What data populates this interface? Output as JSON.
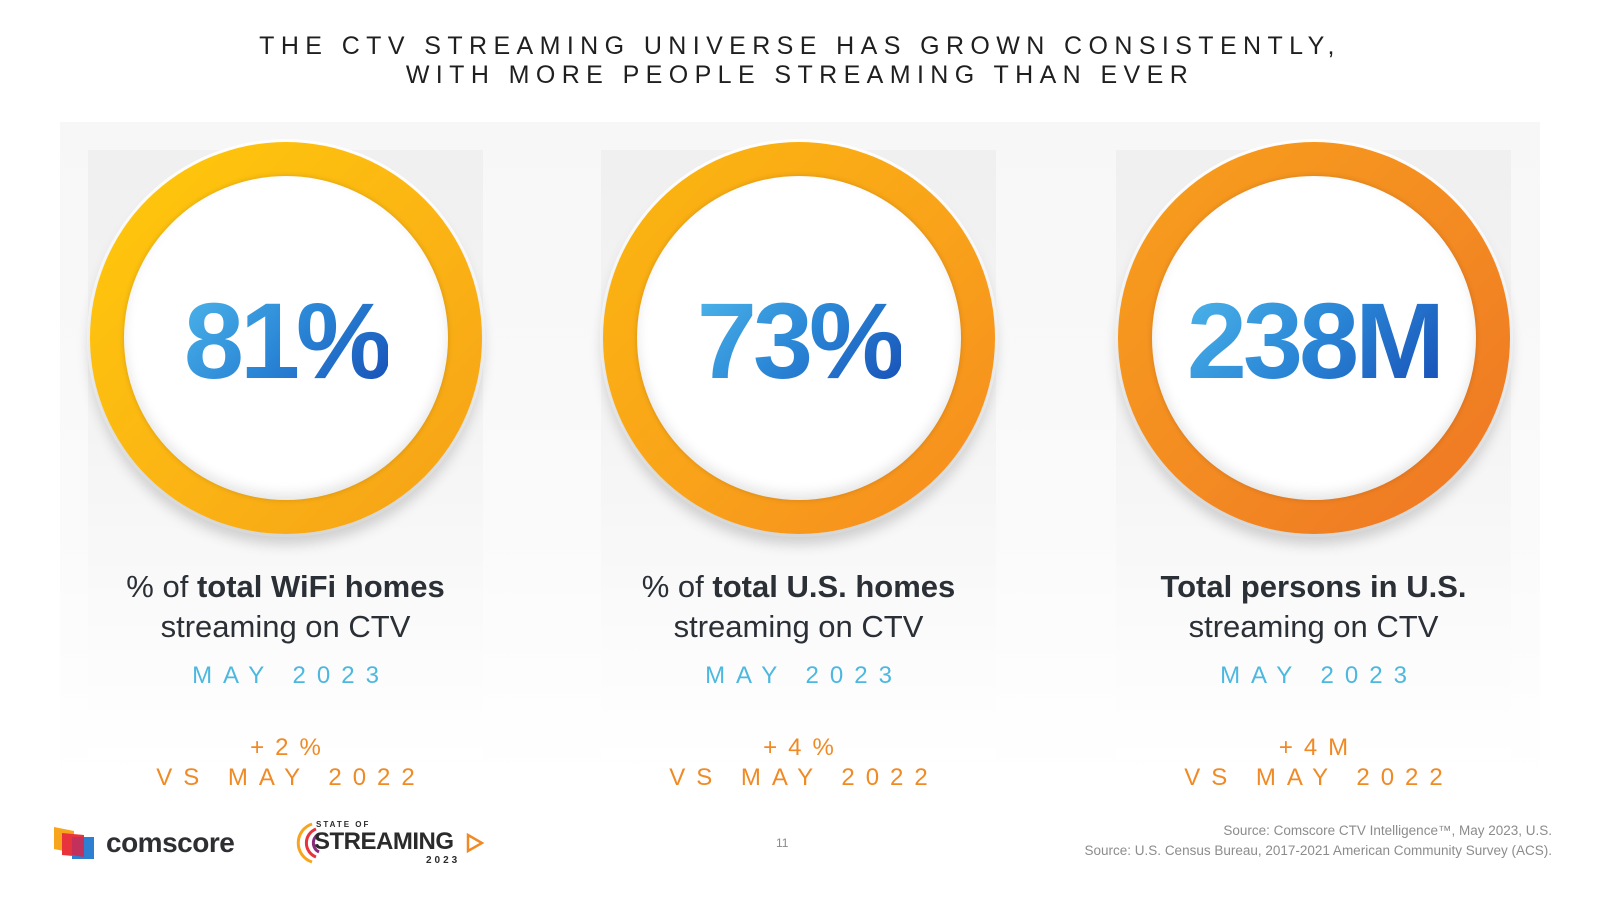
{
  "title": {
    "line1": "THE CTV STREAMING UNIVERSE HAS GROWN CONSISTENTLY,",
    "line2": "WITH MORE PEOPLE STREAMING THAN EVER"
  },
  "colors": {
    "ring_yellow": "#fbb414",
    "ring_orange": "#f38a22",
    "stat_blue": "#2a86d6",
    "date_blue": "#4cb8e0",
    "change_orange": "#f08a24"
  },
  "cards": [
    {
      "stat": "81%",
      "desc_prefix": "% of ",
      "desc_bold": "total WiFi homes",
      "desc_line2": "streaming on CTV",
      "date": "MAY 2023",
      "change": "+2%",
      "change_label": "VS MAY 2022"
    },
    {
      "stat": "73%",
      "desc_prefix": "% of ",
      "desc_bold": "total U.S. homes",
      "desc_line2": "streaming on CTV",
      "date": "MAY 2023",
      "change": "+4%",
      "change_label": "VS MAY 2022"
    },
    {
      "stat": "238M",
      "desc_prefix": "",
      "desc_bold": "Total persons in U.S.",
      "desc_line2": "streaming on CTV",
      "date": "MAY 2023",
      "change": "+4M",
      "change_label": "VS MAY 2022"
    }
  ],
  "footer": {
    "comscore_logo_text": "comscore",
    "sos_top": "STATE OF",
    "sos_main": "STREAMING",
    "sos_year": "2023",
    "page_number": "11",
    "source_line1": "Source: Comscore CTV Intelligence™, May 2023, U.S.",
    "source_line2": "Source: U.S. Census Bureau, 2017-2021 American Community Survey (ACS)."
  }
}
